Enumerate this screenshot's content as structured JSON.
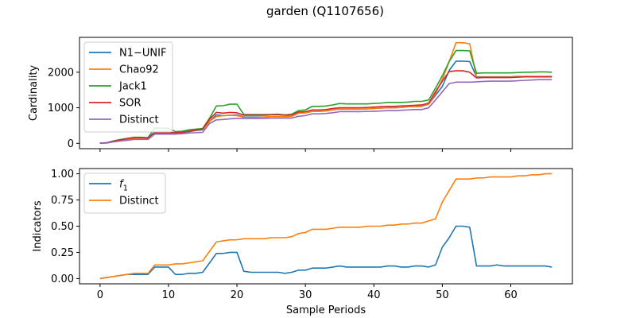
{
  "figure": {
    "title": "garden (Q1107656)"
  },
  "chart_data": [
    {
      "type": "line",
      "ylabel": "Cardinality",
      "xlabel": "",
      "xlim": [
        -3,
        69
      ],
      "ylim": [
        -150,
        2980
      ],
      "xticks": [
        0,
        10,
        20,
        30,
        40,
        50,
        60
      ],
      "yticks": [
        0,
        1000,
        2000
      ],
      "ytick_labels": [
        "0",
        "1000",
        "2000"
      ],
      "legend_position": "upper-left",
      "x": [
        0,
        1,
        2,
        3,
        4,
        5,
        6,
        7,
        8,
        9,
        10,
        11,
        12,
        13,
        14,
        15,
        16,
        17,
        18,
        19,
        20,
        21,
        22,
        23,
        24,
        25,
        26,
        27,
        28,
        29,
        30,
        31,
        32,
        33,
        34,
        35,
        36,
        37,
        38,
        39,
        40,
        41,
        42,
        43,
        44,
        45,
        46,
        47,
        48,
        49,
        50,
        51,
        52,
        53,
        54,
        55,
        56,
        57,
        58,
        59,
        60,
        61,
        62,
        63,
        64,
        65,
        66
      ],
      "series": [
        {
          "name": "N1−UNIF",
          "color": "#1f77b4",
          "values": [
            5,
            10,
            50,
            80,
            110,
            140,
            140,
            130,
            330,
            330,
            330,
            290,
            300,
            330,
            360,
            380,
            620,
            800,
            780,
            790,
            800,
            740,
            740,
            740,
            740,
            750,
            750,
            750,
            760,
            850,
            860,
            900,
            900,
            910,
            940,
            960,
            960,
            960,
            960,
            970,
            980,
            990,
            1000,
            1000,
            1010,
            1030,
            1030,
            1040,
            1100,
            1350,
            1600,
            2050,
            2310,
            2310,
            2300,
            1870,
            1870,
            1870,
            1870,
            1870,
            1870,
            1880,
            1880,
            1880,
            1880,
            1880,
            1880
          ]
        },
        {
          "name": "Chao92",
          "color": "#ff7f0e",
          "values": [
            5,
            10,
            50,
            80,
            110,
            140,
            140,
            130,
            260,
            260,
            260,
            300,
            310,
            340,
            370,
            390,
            620,
            750,
            780,
            790,
            780,
            730,
            730,
            730,
            740,
            750,
            750,
            750,
            760,
            850,
            860,
            900,
            900,
            910,
            940,
            960,
            960,
            960,
            960,
            970,
            980,
            990,
            1000,
            1000,
            1010,
            1030,
            1030,
            1050,
            1100,
            1400,
            1800,
            2300,
            2830,
            2830,
            2800,
            1850,
            1860,
            1860,
            1860,
            1860,
            1860,
            1870,
            1880,
            1880,
            1880,
            1880,
            1880
          ]
        },
        {
          "name": "Jack1",
          "color": "#2ca02c",
          "values": [
            5,
            20,
            70,
            110,
            140,
            170,
            170,
            160,
            430,
            430,
            420,
            330,
            340,
            380,
            400,
            420,
            710,
            1050,
            1060,
            1100,
            1100,
            810,
            810,
            810,
            810,
            810,
            820,
            800,
            820,
            920,
            940,
            1040,
            1040,
            1050,
            1080,
            1120,
            1110,
            1110,
            1110,
            1110,
            1120,
            1130,
            1150,
            1150,
            1150,
            1160,
            1180,
            1180,
            1220,
            1550,
            1900,
            2300,
            2610,
            2610,
            2600,
            1970,
            1980,
            1980,
            1980,
            1980,
            1980,
            1990,
            2000,
            2000,
            2010,
            2010,
            2000
          ]
        },
        {
          "name": "SOR",
          "color": "#d62728",
          "values": [
            5,
            15,
            60,
            100,
            130,
            160,
            160,
            150,
            290,
            290,
            290,
            300,
            310,
            340,
            380,
            400,
            680,
            870,
            850,
            870,
            860,
            790,
            790,
            790,
            790,
            800,
            800,
            790,
            800,
            880,
            890,
            940,
            940,
            950,
            980,
            1000,
            1000,
            1000,
            1000,
            1010,
            1020,
            1030,
            1040,
            1040,
            1050,
            1060,
            1070,
            1080,
            1130,
            1450,
            1750,
            2020,
            2040,
            2040,
            2000,
            1840,
            1850,
            1850,
            1850,
            1850,
            1850,
            1860,
            1870,
            1870,
            1870,
            1870,
            1870
          ]
        },
        {
          "name": "Distinct",
          "color": "#9467bd",
          "values": [
            5,
            10,
            40,
            65,
            85,
            110,
            110,
            110,
            260,
            260,
            260,
            260,
            270,
            290,
            300,
            310,
            560,
            660,
            670,
            690,
            700,
            700,
            700,
            700,
            700,
            710,
            710,
            710,
            710,
            760,
            780,
            830,
            830,
            840,
            860,
            890,
            890,
            890,
            890,
            900,
            900,
            910,
            920,
            920,
            930,
            940,
            950,
            950,
            1000,
            1220,
            1450,
            1680,
            1720,
            1720,
            1720,
            1730,
            1740,
            1750,
            1750,
            1750,
            1750,
            1760,
            1770,
            1780,
            1790,
            1790,
            1790
          ]
        }
      ]
    },
    {
      "type": "line",
      "ylabel": "Indicators",
      "xlabel": "Sample Periods",
      "xlim": [
        -3,
        69
      ],
      "ylim": [
        -0.05,
        1.05
      ],
      "xticks": [
        0,
        10,
        20,
        30,
        40,
        50,
        60
      ],
      "yticks": [
        0,
        0.25,
        0.5,
        0.75,
        1.0
      ],
      "ytick_labels": [
        "0.00",
        "0.25",
        "0.50",
        "0.75",
        "1.00"
      ],
      "legend_position": "upper-left",
      "x": [
        0,
        1,
        2,
        3,
        4,
        5,
        6,
        7,
        8,
        9,
        10,
        11,
        12,
        13,
        14,
        15,
        16,
        17,
        18,
        19,
        20,
        21,
        22,
        23,
        24,
        25,
        26,
        27,
        28,
        29,
        30,
        31,
        32,
        33,
        34,
        35,
        36,
        37,
        38,
        39,
        40,
        41,
        42,
        43,
        44,
        45,
        46,
        47,
        48,
        49,
        50,
        51,
        52,
        53,
        54,
        55,
        56,
        57,
        58,
        59,
        60,
        61,
        62,
        63,
        64,
        65,
        66
      ],
      "series": [
        {
          "name": "f_1",
          "color": "#1f77b4",
          "values": [
            0.0,
            0.01,
            0.02,
            0.03,
            0.04,
            0.04,
            0.04,
            0.04,
            0.11,
            0.11,
            0.11,
            0.04,
            0.04,
            0.05,
            0.05,
            0.06,
            0.15,
            0.24,
            0.24,
            0.25,
            0.25,
            0.07,
            0.06,
            0.06,
            0.06,
            0.06,
            0.06,
            0.05,
            0.06,
            0.08,
            0.08,
            0.1,
            0.1,
            0.1,
            0.11,
            0.12,
            0.11,
            0.11,
            0.11,
            0.11,
            0.11,
            0.11,
            0.12,
            0.12,
            0.11,
            0.11,
            0.12,
            0.12,
            0.11,
            0.13,
            0.3,
            0.39,
            0.5,
            0.5,
            0.49,
            0.12,
            0.12,
            0.12,
            0.13,
            0.12,
            0.12,
            0.12,
            0.12,
            0.12,
            0.12,
            0.12,
            0.11
          ]
        },
        {
          "name": "Distinct",
          "color": "#ff7f0e",
          "values": [
            0.0,
            0.01,
            0.02,
            0.03,
            0.04,
            0.05,
            0.05,
            0.05,
            0.13,
            0.13,
            0.13,
            0.14,
            0.14,
            0.15,
            0.16,
            0.17,
            0.26,
            0.35,
            0.36,
            0.37,
            0.37,
            0.38,
            0.38,
            0.38,
            0.38,
            0.39,
            0.39,
            0.39,
            0.4,
            0.43,
            0.44,
            0.47,
            0.47,
            0.47,
            0.48,
            0.49,
            0.49,
            0.49,
            0.49,
            0.5,
            0.5,
            0.5,
            0.51,
            0.51,
            0.52,
            0.52,
            0.53,
            0.53,
            0.55,
            0.57,
            0.73,
            0.84,
            0.95,
            0.95,
            0.95,
            0.96,
            0.96,
            0.97,
            0.97,
            0.97,
            0.97,
            0.98,
            0.98,
            0.99,
            0.99,
            1.0,
            1.0
          ]
        }
      ]
    }
  ]
}
